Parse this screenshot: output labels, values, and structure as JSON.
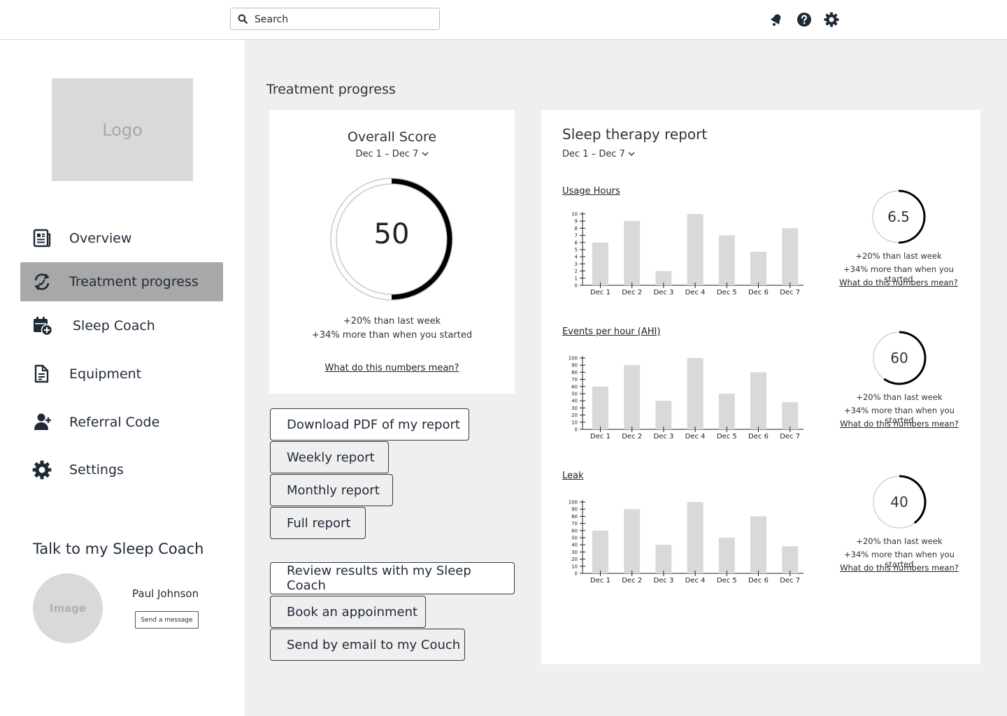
{
  "search": {
    "placeholder": "Search"
  },
  "top_icons": [
    "bell-icon",
    "help-icon",
    "gear-icon"
  ],
  "sidebar": {
    "logo": "Logo",
    "items": [
      {
        "label": "Overview",
        "icon": "newspaper-icon",
        "active": false
      },
      {
        "label": "Treatment progress",
        "icon": "sync-icon",
        "active": true
      },
      {
        "label": "Sleep Coach",
        "icon": "calendar-plus-icon",
        "active": false
      },
      {
        "label": "Equipment",
        "icon": "document-icon",
        "active": false
      },
      {
        "label": "Referral Code",
        "icon": "user-plus-icon",
        "active": false
      },
      {
        "label": "Settings",
        "icon": "gear-icon",
        "active": false
      }
    ],
    "coach": {
      "title": "Talk to my Sleep Coach",
      "avatar": "Image",
      "name": "Paul Johnson",
      "send_label": "Send a message"
    }
  },
  "main": {
    "title": "Treatment progress",
    "score": {
      "title": "Overall Score",
      "range": "Dec 1 – Dec 7",
      "value": "50",
      "fraction": 0.5,
      "line1": "+20% than last week",
      "line2": "+34% more than when you started",
      "link": "What do this numbers mean?"
    },
    "buttons_group1": [
      "Download PDF of my report",
      "Weekly report",
      "Monthly report",
      "Full report"
    ],
    "buttons_group2": [
      "Review results with my Sleep Coach",
      "Book an appoinment",
      "Send by email to my Couch"
    ],
    "report": {
      "title": "Sleep therapy report",
      "range": "Dec 1 – Dec 7"
    }
  },
  "colors": {
    "main_bg": "#efefef",
    "active_nav": "#a8a8a8",
    "bar": "#d9d9d9",
    "text": "#1f2a37"
  },
  "chart_data": [
    {
      "type": "bar",
      "title": "Usage Hours",
      "categories": [
        "Dec 1",
        "Dec 2",
        "Dec 3",
        "Dec 4",
        "Dec 5",
        "Dec 6",
        "Dec 7"
      ],
      "values": [
        6,
        9,
        2,
        10,
        7,
        4.7,
        8
      ],
      "ylim": [
        0,
        10
      ],
      "yticks": [
        0,
        1,
        2,
        3,
        4,
        5,
        6,
        7,
        8,
        9,
        10
      ],
      "summary": {
        "value": "6.5",
        "fraction": 0.5,
        "line1": "+20% than last week",
        "line2": "+34% more than when you started",
        "link": "What do this numbers mean?"
      }
    },
    {
      "type": "bar",
      "title": "Events per hour (AHI)",
      "categories": [
        "Dec 1",
        "Dec 2",
        "Dec 3",
        "Dec 4",
        "Dec 5",
        "Dec 6",
        "Dec 7"
      ],
      "values": [
        60,
        90,
        40,
        100,
        50,
        80,
        38
      ],
      "ylim": [
        0,
        100
      ],
      "yticks": [
        0,
        10,
        20,
        30,
        40,
        50,
        60,
        70,
        80,
        90,
        100
      ],
      "summary": {
        "value": "60",
        "fraction": 0.6,
        "line1": "+20% than last week",
        "line2": "+34% more than when you started",
        "link": "What do this numbers mean?"
      }
    },
    {
      "type": "bar",
      "title": "Leak",
      "categories": [
        "Dec 1",
        "Dec 2",
        "Dec 3",
        "Dec 4",
        "Dec 5",
        "Dec 6",
        "Dec 7"
      ],
      "values": [
        60,
        90,
        40,
        100,
        50,
        80,
        38
      ],
      "ylim": [
        0,
        100
      ],
      "yticks": [
        0,
        10,
        20,
        30,
        40,
        50,
        60,
        70,
        80,
        90,
        100
      ],
      "summary": {
        "value": "40",
        "fraction": 0.4,
        "line1": "+20% than last week",
        "line2": "+34% more than when you started",
        "link": "What do this numbers mean?"
      }
    }
  ]
}
